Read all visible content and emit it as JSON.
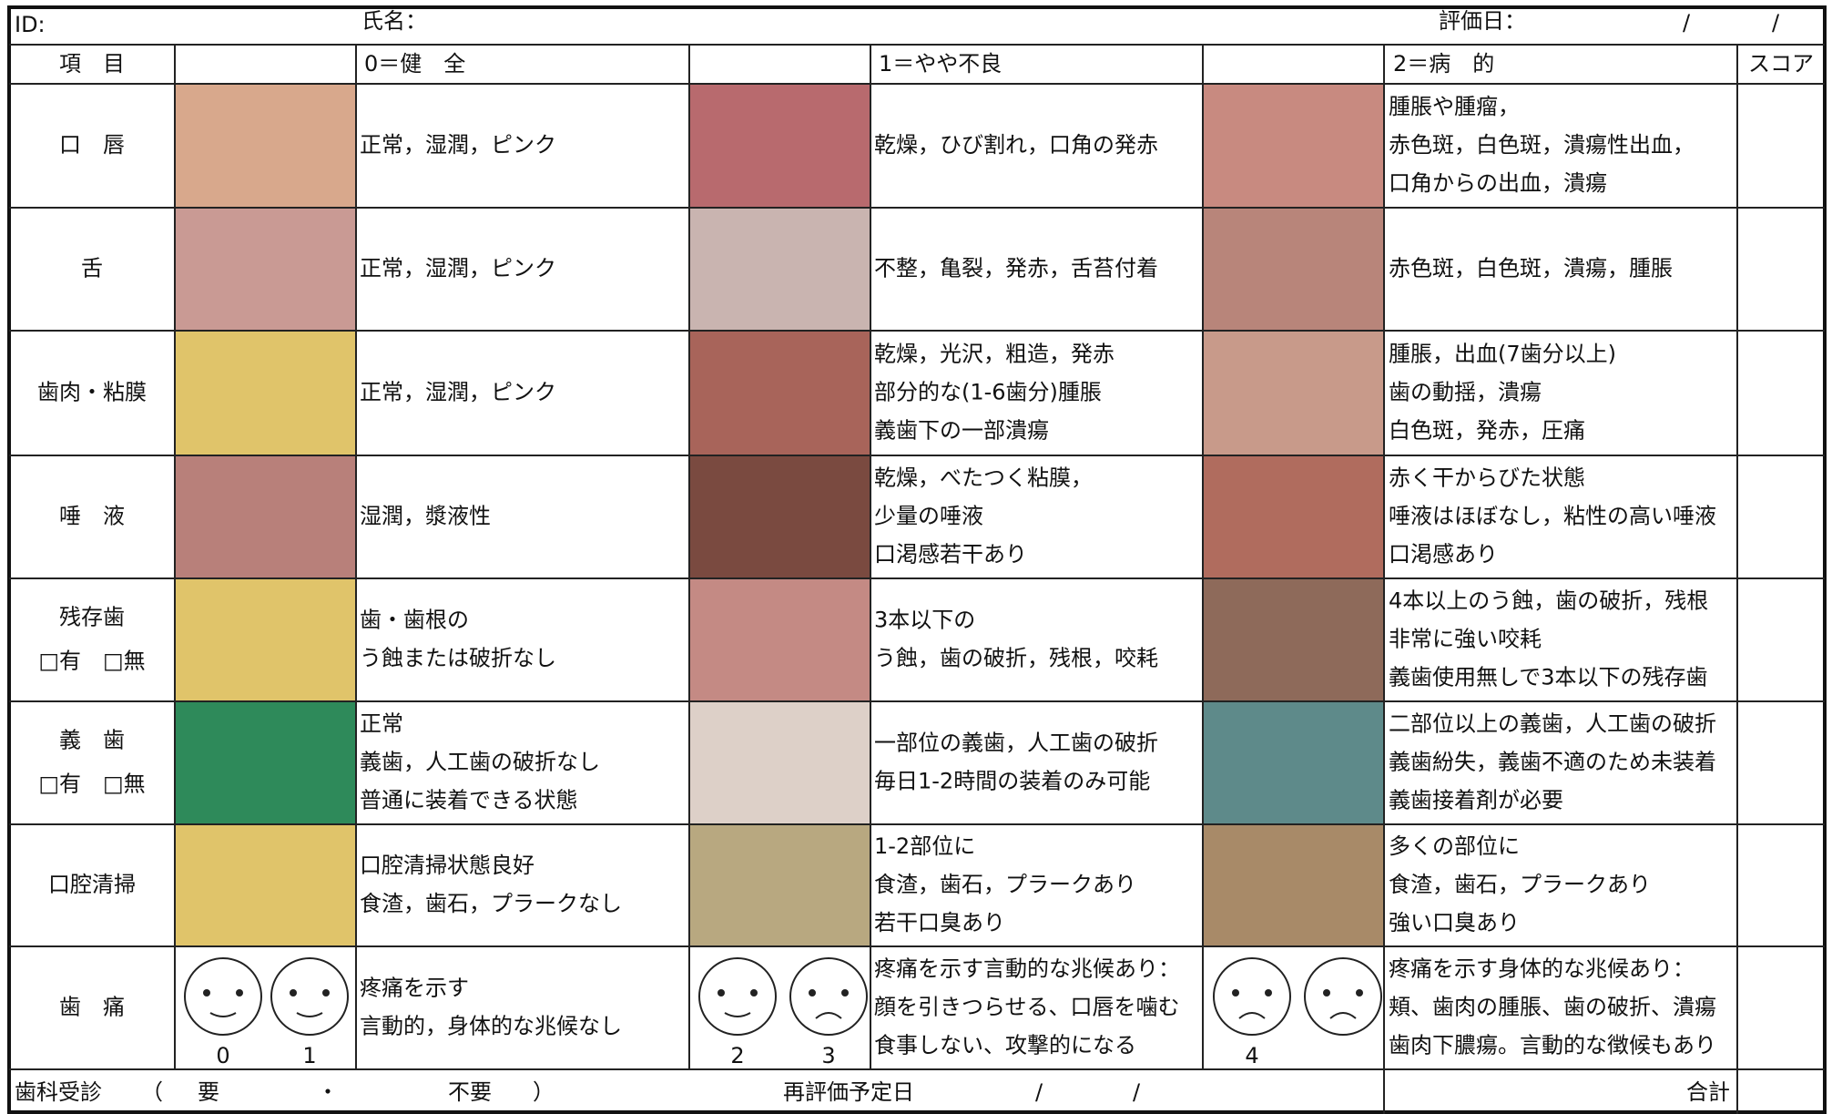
{
  "header": {
    "id": "ID:",
    "name": "氏名：",
    "date": "評価日：",
    "slash1": "/",
    "slash2": "/"
  },
  "columns": {
    "item": "項　目",
    "healthy": "0＝健　全",
    "fair": "1＝やや不良",
    "poor": "2＝病　的",
    "score": "スコア"
  },
  "rows": [
    {
      "item": [
        "口　唇"
      ],
      "healthy": [
        "正常，湿潤，ピンク"
      ],
      "fair": [
        "乾燥，ひび割れ，口角の発赤"
      ],
      "poor": [
        "腫脹や腫瘤，",
        "赤色斑，白色斑，潰瘍性出血，",
        "口角からの出血，潰瘍"
      ]
    },
    {
      "item": [
        "舌"
      ],
      "healthy": [
        "正常，湿潤，ピンク"
      ],
      "fair": [
        "不整，亀裂，発赤，舌苔付着"
      ],
      "poor": [
        "赤色斑，白色斑，潰瘍，腫脹"
      ]
    },
    {
      "item": [
        "歯肉・粘膜"
      ],
      "healthy": [
        "正常，湿潤，ピンク"
      ],
      "fair": [
        "乾燥，光沢，粗造，発赤",
        "部分的な(1-6歯分)腫脹",
        "義歯下の一部潰瘍"
      ],
      "poor": [
        "腫脹，出血(7歯分以上)",
        "歯の動揺，潰瘍",
        "白色斑，発赤，圧痛"
      ]
    },
    {
      "item": [
        "唾　液"
      ],
      "healthy": [
        "湿潤，漿液性"
      ],
      "fair": [
        "乾燥，べたつく粘膜，",
        "少量の唾液",
        "口渇感若干あり"
      ],
      "poor": [
        "赤く干からびた状態",
        "唾液はほぼなし，粘性の高い唾液",
        "口渇感あり"
      ]
    },
    {
      "item": [
        "残存歯",
        "□有　□無"
      ],
      "healthy": [
        "歯・歯根の",
        "う蝕または破折なし"
      ],
      "fair": [
        "3本以下の",
        "う蝕，歯の破折，残根，咬耗"
      ],
      "poor": [
        "4本以上のう蝕，歯の破折，残根",
        "非常に強い咬耗",
        "義歯使用無しで3本以下の残存歯"
      ]
    },
    {
      "item": [
        "義　歯",
        "□有　□無"
      ],
      "healthy": [
        "正常",
        "義歯，人工歯の破折なし",
        "普通に装着できる状態"
      ],
      "fair": [
        "一部位の義歯，人工歯の破折",
        "毎日1-2時間の装着のみ可能"
      ],
      "poor": [
        "二部位以上の義歯，人工歯の破折",
        "義歯紛失，義歯不適のため未装着",
        "義歯接着剤が必要"
      ]
    },
    {
      "item": [
        "口腔清掃"
      ],
      "healthy": [
        "口腔清掃状態良好",
        "食渣，歯石，プラークなし"
      ],
      "fair": [
        "1-2部位に",
        "食渣，歯石，プラークあり",
        "若干口臭あり"
      ],
      "poor": [
        "多くの部位に",
        "食渣，歯石，プラークあり",
        "強い口臭あり"
      ]
    },
    {
      "item": [
        "歯　痛"
      ],
      "healthy": [
        "疼痛を示す",
        "言動的，身体的な兆候なし"
      ],
      "fair": [
        "疼痛を示す言動的な兆候あり：",
        "顔を引きつらせる、口唇を噛む",
        "食事しない、攻撃的になる"
      ],
      "poor": [
        "疼痛を示す身体的な兆候あり：",
        "頬、歯肉の腫脹、歯の破折、潰瘍",
        "歯肉下膿瘍。言動的な徴候もあり"
      ]
    }
  ],
  "pain_scale_labels": [
    "0",
    "1",
    "2",
    "3",
    "4"
  ],
  "footer": {
    "visit": "歯科受診",
    "open": "（",
    "yes": "要",
    "dot": "・",
    "no": "不要",
    "close": "）",
    "reeval": "再評価予定日",
    "slash1": "/",
    "slash2": "/",
    "total": "合計"
  }
}
